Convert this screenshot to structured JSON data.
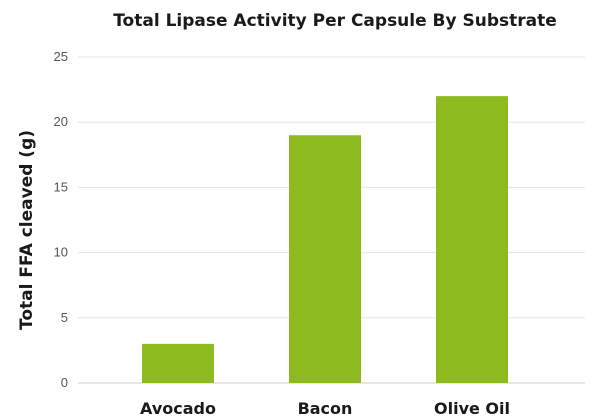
{
  "chart_data": {
    "type": "bar",
    "title": "Total Lipase Activity Per Capsule By Substrate",
    "xlabel": "",
    "ylabel": "Total FFA cleaved (g)",
    "categories": [
      "Avocado",
      "Bacon",
      "Olive Oil"
    ],
    "values": [
      3,
      19,
      22
    ],
    "ylim": [
      0,
      25
    ],
    "yticks": [
      0,
      5,
      10,
      15,
      20,
      25
    ],
    "grid": true,
    "legend": "none",
    "bar_color": "#8dbb1f"
  }
}
